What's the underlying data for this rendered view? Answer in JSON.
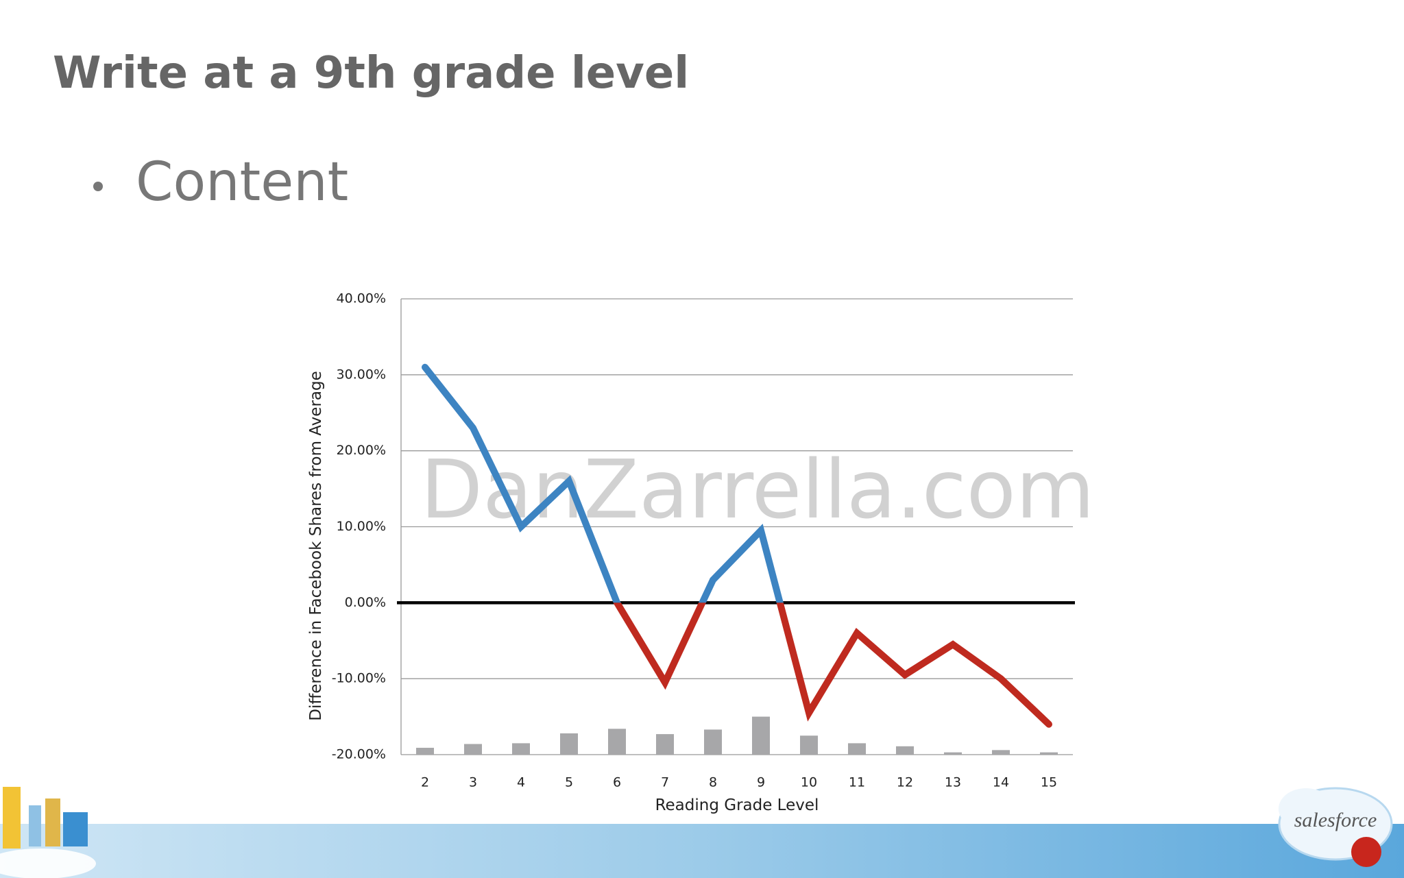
{
  "slide_title": "Write at a 9th grade level",
  "bullet": "Content",
  "logo": "salesforce",
  "chart_data": {
    "type": "line",
    "watermark": "DanZarrella.com",
    "x_label": "Reading Grade Level",
    "y_label": "Difference in Facebook Shares from Average",
    "categories": [
      "2",
      "3",
      "4",
      "5",
      "6",
      "7",
      "8",
      "9",
      "10",
      "11",
      "12",
      "13",
      "14",
      "15"
    ],
    "line": {
      "values": [
        31,
        23,
        10,
        16,
        0,
        -10.5,
        3,
        9.5,
        -14.5,
        -4,
        -9.5,
        -5.5,
        -10,
        -16
      ],
      "color": "#3d84c2",
      "negative_color": "#bf2a1f"
    },
    "bars": {
      "values": [
        -19.1,
        -18.6,
        -18.5,
        -17.2,
        -16.6,
        -17.3,
        -16.7,
        -15,
        -17.5,
        -18.5,
        -18.9,
        -19.7,
        -19.4,
        -19.7
      ],
      "color": "#a7a7a9"
    },
    "ylim": [
      -20,
      40
    ],
    "yticks": [
      {
        "value": -20,
        "label": "-20.00%"
      },
      {
        "value": -10,
        "label": "-10.00%"
      },
      {
        "value": 0,
        "label": "0.00%"
      },
      {
        "value": 10,
        "label": "10.00%"
      },
      {
        "value": 20,
        "label": "20.00%"
      },
      {
        "value": 30,
        "label": "30.00%"
      },
      {
        "value": 40,
        "label": "40.00%"
      }
    ],
    "grid": true
  }
}
